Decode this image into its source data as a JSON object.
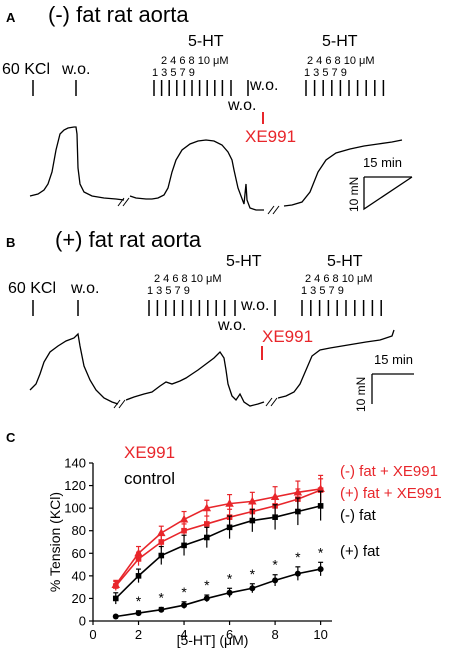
{
  "panel_a": {
    "letter": "A",
    "title": "(-) fat rat aorta",
    "kcl_label": "60 KCl",
    "wo_label": "w.o.",
    "ht_label_1": "5-HT",
    "ht_label_2": "5-HT",
    "dose_top_1": "2 4  6  8 10 μM",
    "dose_bottom_1": "1 3  5  7  9",
    "dose_top_2": "2 4   6  8  10 μM",
    "dose_bottom_2": "1 3  5  7  9",
    "wo_after_1": "w.o.",
    "wo_lower": "w.o.",
    "xe991_label": "XE991",
    "time_scale": "15 min",
    "tension_scale": "10 mN"
  },
  "panel_b": {
    "letter": "B",
    "title": "(+) fat rat aorta",
    "kcl_label": "60 KCl",
    "wo_label": "w.o.",
    "ht_label_1": "5-HT",
    "ht_label_2": "5-HT",
    "dose_top_1": "2  4  6  8 10 μM",
    "dose_bottom_1": "1  3  5  7  9",
    "dose_top_2": "2 4   6  8  10 μM",
    "dose_bottom_2": "1 3   5  7  9",
    "wo_after_1": "w.o.",
    "wo_lower": "w.o.",
    "xe991_label": "XE991",
    "time_scale": "15 min",
    "tension_scale": "10 mN"
  },
  "panel_c": {
    "letter": "C",
    "legend_xe991": "XE991",
    "legend_control": "control",
    "colors": {
      "xe991": "#e8262b",
      "control": "#000000"
    }
  },
  "chart_data": {
    "type": "line",
    "xlabel": "[5-HT] (μM)",
    "ylabel": "% Tension (KCl)",
    "xlim": [
      0,
      10.5
    ],
    "ylim": [
      0,
      140
    ],
    "xticks": [
      0,
      2,
      4,
      6,
      8,
      10
    ],
    "yticks": [
      0,
      20,
      40,
      60,
      80,
      100,
      120,
      140
    ],
    "x": [
      1,
      2,
      3,
      4,
      5,
      6,
      7,
      8,
      9,
      10
    ],
    "series": [
      {
        "name": "(-) fat + XE991",
        "color": "#e8262b",
        "marker": "triangle",
        "values": [
          32,
          60,
          78,
          90,
          100,
          104,
          106,
          110,
          114,
          117
        ],
        "errors": [
          4,
          6,
          6,
          7,
          7,
          8,
          8,
          9,
          10,
          12
        ]
      },
      {
        "name": "(+) fat + XE991",
        "color": "#e8262b",
        "marker": "square",
        "values": [
          31,
          55,
          70,
          80,
          86,
          92,
          97,
          102,
          108,
          116
        ],
        "errors": [
          4,
          6,
          6,
          6,
          7,
          7,
          8,
          8,
          9,
          10
        ]
      },
      {
        "name": "(-) fat",
        "color": "#000000",
        "marker": "square",
        "values": [
          20,
          40,
          58,
          67,
          74,
          83,
          89,
          92,
          97,
          102
        ],
        "errors": [
          5,
          6,
          8,
          9,
          9,
          10,
          10,
          11,
          12,
          13
        ]
      },
      {
        "name": "(+) fat",
        "color": "#000000",
        "marker": "circle",
        "values": [
          4,
          7,
          10,
          14,
          20,
          25,
          29,
          36,
          42,
          46
        ],
        "errors": [
          1,
          2,
          2,
          3,
          3,
          4,
          4,
          5,
          6,
          6
        ]
      }
    ],
    "significance_marker": "*",
    "significant_x": [
      2,
      3,
      4,
      5,
      6,
      7,
      8,
      9,
      10
    ]
  }
}
